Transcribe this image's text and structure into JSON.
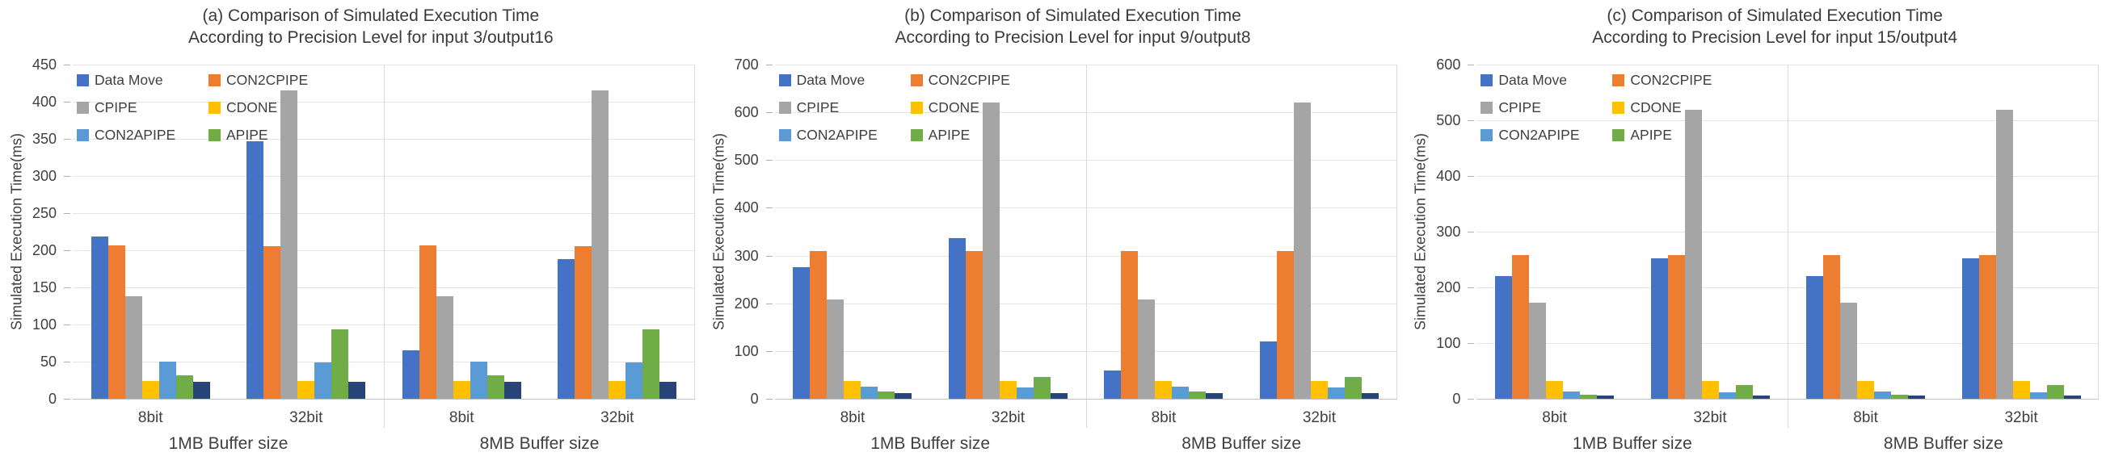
{
  "page": {
    "background": "#ffffff",
    "text_color": "#404040",
    "grid_color": "#e5e5e5"
  },
  "legend": {
    "items": [
      "Data Move",
      "CON2CPIPE",
      "CPIPE",
      "CDONE",
      "CON2APIPE",
      "APIPE"
    ]
  },
  "chart_data": [
    {
      "type": "bar",
      "panel": "a",
      "title": "(a) Comparison of Simulated Execution Time",
      "subtitle": "According to Precision Level for input 3/output16",
      "ylabel": "Simulated Execution Time(ms)",
      "ylim": [
        0,
        450
      ],
      "ytick_step": 50,
      "grid": "horizontal",
      "legend_position": "top-left-inside",
      "categories": [
        "8bit",
        "32bit",
        "8bit",
        "32bit"
      ],
      "group_labels": [
        "1MB Buffer size",
        "8MB Buffer size"
      ],
      "series": [
        {
          "name": "Data Move",
          "color": "#4472C4",
          "in_legend": true,
          "values": [
            218,
            347,
            65,
            188
          ]
        },
        {
          "name": "CON2CPIPE",
          "color": "#ED7D31",
          "in_legend": true,
          "values": [
            207,
            205,
            207,
            205
          ]
        },
        {
          "name": "CPIPE",
          "color": "#A5A5A5",
          "in_legend": true,
          "values": [
            138,
            415,
            138,
            415
          ]
        },
        {
          "name": "CDONE",
          "color": "#FFC000",
          "in_legend": true,
          "values": [
            24,
            24,
            24,
            24
          ]
        },
        {
          "name": "CON2APIPE",
          "color": "#5B9BD5",
          "in_legend": true,
          "values": [
            50,
            49,
            50,
            49
          ]
        },
        {
          "name": "APIPE",
          "color": "#70AD47",
          "in_legend": true,
          "values": [
            31,
            94,
            31,
            94
          ]
        },
        {
          "name": "",
          "color": "#264478",
          "in_legend": false,
          "values": [
            23,
            23,
            23,
            23
          ]
        }
      ]
    },
    {
      "type": "bar",
      "panel": "b",
      "title": "(b) Comparison of Simulated Execution Time",
      "subtitle": "According to Precision Level for input 9/output8",
      "ylabel": "Simulated Execution Time(ms)",
      "ylim": [
        0,
        700
      ],
      "ytick_step": 100,
      "grid": "horizontal",
      "legend_position": "top-left-inside",
      "categories": [
        "8bit",
        "32bit",
        "8bit",
        "32bit"
      ],
      "group_labels": [
        "1MB Buffer size",
        "8MB Buffer size"
      ],
      "series": [
        {
          "name": "Data Move",
          "color": "#4472C4",
          "in_legend": true,
          "values": [
            275,
            337,
            60,
            120
          ]
        },
        {
          "name": "CON2CPIPE",
          "color": "#ED7D31",
          "in_legend": true,
          "values": [
            310,
            310,
            310,
            310
          ]
        },
        {
          "name": "CPIPE",
          "color": "#A5A5A5",
          "in_legend": true,
          "values": [
            208,
            620,
            208,
            620
          ]
        },
        {
          "name": "CDONE",
          "color": "#FFC000",
          "in_legend": true,
          "values": [
            37,
            37,
            37,
            37
          ]
        },
        {
          "name": "CON2APIPE",
          "color": "#5B9BD5",
          "in_legend": true,
          "values": [
            25,
            24,
            25,
            24
          ]
        },
        {
          "name": "APIPE",
          "color": "#70AD47",
          "in_legend": true,
          "values": [
            16,
            46,
            16,
            46
          ]
        },
        {
          "name": "",
          "color": "#264478",
          "in_legend": false,
          "values": [
            11,
            11,
            11,
            11
          ]
        }
      ]
    },
    {
      "type": "bar",
      "panel": "c",
      "title": "(c) Comparison of Simulated Execution Time",
      "subtitle": "According to Precision Level for input 15/output4",
      "ylabel": "Simulated Execution Time(ms)",
      "ylim": [
        0,
        600
      ],
      "ytick_step": 100,
      "grid": "horizontal",
      "legend_position": "top-left-inside",
      "categories": [
        "8bit",
        "32bit",
        "8bit",
        "32bit"
      ],
      "group_labels": [
        "1MB Buffer size",
        "8MB Buffer size"
      ],
      "series": [
        {
          "name": "Data Move",
          "color": "#4472C4",
          "in_legend": true,
          "values": [
            220,
            252,
            220,
            252
          ]
        },
        {
          "name": "CON2CPIPE",
          "color": "#ED7D31",
          "in_legend": true,
          "values": [
            258,
            258,
            258,
            258
          ]
        },
        {
          "name": "CPIPE",
          "color": "#A5A5A5",
          "in_legend": true,
          "values": [
            173,
            519,
            173,
            519
          ]
        },
        {
          "name": "CDONE",
          "color": "#FFC000",
          "in_legend": true,
          "values": [
            32,
            32,
            32,
            32
          ]
        },
        {
          "name": "CON2APIPE",
          "color": "#5B9BD5",
          "in_legend": true,
          "values": [
            13,
            12,
            13,
            12
          ]
        },
        {
          "name": "APIPE",
          "color": "#70AD47",
          "in_legend": true,
          "values": [
            7,
            25,
            7,
            25
          ]
        },
        {
          "name": "",
          "color": "#264478",
          "in_legend": false,
          "values": [
            6,
            6,
            6,
            6
          ]
        }
      ]
    }
  ]
}
